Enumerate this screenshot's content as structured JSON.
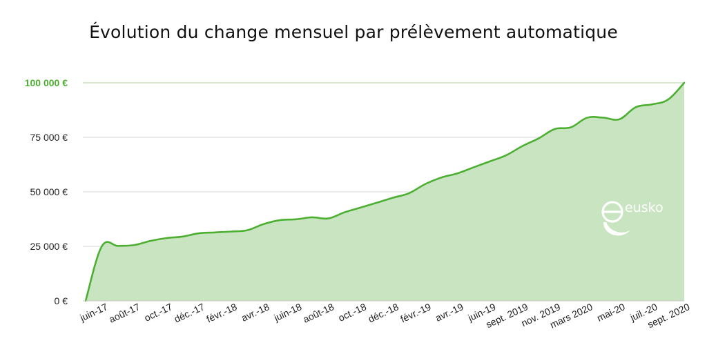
{
  "chart_data": {
    "type": "area",
    "title": "Évolution du change mensuel par prélèvement automatique",
    "xlabel": "",
    "ylabel": "",
    "ylim": [
      0,
      100000
    ],
    "y_ticks": [
      {
        "value": 0,
        "label": "0 €"
      },
      {
        "value": 25000,
        "label": "25 000 €"
      },
      {
        "value": 50000,
        "label": "50 000 €"
      },
      {
        "value": 75000,
        "label": "75 000 €"
      },
      {
        "value": 100000,
        "label": "100 000 €",
        "highlight": true
      }
    ],
    "x_labels": [
      "juin-17",
      "août-17",
      "oct.-17",
      "déc.-17",
      "févr.-18",
      "avr.-18",
      "juin-18",
      "août-18",
      "oct.-18",
      "déc.-18",
      "févr.-19",
      "avr.-19",
      "juin-19",
      "sept. 2019",
      "nov. 2019",
      "mars 2020",
      "mai-20",
      "juil.-20",
      "sept. 2020"
    ],
    "grid": true,
    "colors": {
      "line": "#4caf32",
      "fill": "#c8e4c0",
      "grid": "#d6d6d6",
      "highlight": "#4caf32"
    },
    "series": [
      {
        "values": [
          0,
          25000,
          25200,
          25600,
          27500,
          28800,
          29500,
          31000,
          31400,
          31800,
          32400,
          35200,
          37000,
          37400,
          38300,
          37800,
          40600,
          42800,
          45000,
          47300,
          49400,
          53600,
          56600,
          58500,
          61300,
          64000,
          66800,
          71000,
          74500,
          78800,
          79600,
          84000,
          84000,
          83300,
          88800,
          90100,
          92300,
          100000
        ]
      }
    ]
  },
  "logo": {
    "text": "eusko"
  }
}
